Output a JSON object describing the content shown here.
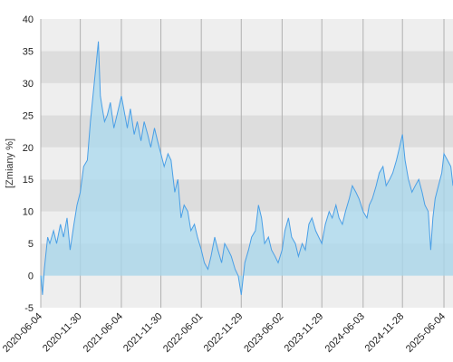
{
  "chart_data": {
    "type": "area",
    "title": "",
    "xlabel": "",
    "ylabel": "[Zmiany %]",
    "ylim": [
      -5,
      40
    ],
    "yticks": [
      -5,
      0,
      5,
      10,
      15,
      20,
      25,
      30,
      35,
      40
    ],
    "xlim": [
      "2020-06-04",
      "2025-07-15"
    ],
    "xticks": [
      "2020-06-04",
      "2020-11-30",
      "2021-06-04",
      "2021-11-30",
      "2022-06-01",
      "2022-11-29",
      "2023-06-02",
      "2023-11-29",
      "2024-06-03",
      "2024-11-28",
      "2025-06-04"
    ],
    "grid": true,
    "legend": "none",
    "colors": {
      "line": "#4a9fe6",
      "fill": "#a8d8ee",
      "band_dark": "#dddddd",
      "band_light": "#eeeeee",
      "grid": "#b0b0b0"
    },
    "series": [
      {
        "x": [
          "2020-06-04",
          "2020-06-12",
          "2020-06-20",
          "2020-07-05",
          "2020-07-15",
          "2020-08-01",
          "2020-08-15",
          "2020-09-01",
          "2020-09-15",
          "2020-10-01",
          "2020-10-15",
          "2020-11-01",
          "2020-11-15",
          "2020-11-30",
          "2020-12-15",
          "2021-01-01",
          "2021-01-15",
          "2021-02-01",
          "2021-02-10",
          "2021-02-20",
          "2021-03-01",
          "2021-03-10",
          "2021-03-20",
          "2021-04-01",
          "2021-04-15",
          "2021-05-01",
          "2021-05-15",
          "2021-06-04",
          "2021-06-20",
          "2021-07-01",
          "2021-07-15",
          "2021-08-01",
          "2021-08-15",
          "2021-09-01",
          "2021-09-15",
          "2021-10-01",
          "2021-10-15",
          "2021-11-01",
          "2021-11-15",
          "2021-11-30",
          "2021-12-15",
          "2022-01-01",
          "2022-01-15",
          "2022-02-01",
          "2022-02-15",
          "2022-03-01",
          "2022-03-15",
          "2022-04-01",
          "2022-04-15",
          "2022-05-01",
          "2022-05-15",
          "2022-06-01",
          "2022-06-15",
          "2022-07-01",
          "2022-07-15",
          "2022-08-01",
          "2022-08-15",
          "2022-09-01",
          "2022-09-15",
          "2022-10-01",
          "2022-10-15",
          "2022-11-01",
          "2022-11-15",
          "2022-11-29",
          "2022-12-15",
          "2023-01-01",
          "2023-01-15",
          "2023-02-01",
          "2023-02-15",
          "2023-03-01",
          "2023-03-15",
          "2023-04-01",
          "2023-04-15",
          "2023-05-01",
          "2023-05-15",
          "2023-06-02",
          "2023-06-15",
          "2023-07-01",
          "2023-07-15",
          "2023-08-01",
          "2023-08-15",
          "2023-09-01",
          "2023-09-15",
          "2023-10-01",
          "2023-10-15",
          "2023-11-01",
          "2023-11-15",
          "2023-11-29",
          "2023-12-15",
          "2024-01-01",
          "2024-01-15",
          "2024-02-01",
          "2024-02-15",
          "2024-03-01",
          "2024-03-15",
          "2024-04-01",
          "2024-04-15",
          "2024-05-01",
          "2024-05-15",
          "2024-06-03",
          "2024-06-20",
          "2024-07-01",
          "2024-07-15",
          "2024-08-01",
          "2024-08-15",
          "2024-09-01",
          "2024-09-15",
          "2024-10-01",
          "2024-10-15",
          "2024-11-01",
          "2024-11-15",
          "2024-11-28",
          "2024-12-10",
          "2024-12-25",
          "2025-01-10",
          "2025-01-25",
          "2025-02-10",
          "2025-02-25",
          "2025-03-10",
          "2025-03-25",
          "2025-04-05",
          "2025-04-15",
          "2025-04-25",
          "2025-05-10",
          "2025-05-25",
          "2025-06-04",
          "2025-06-20",
          "2025-07-05",
          "2025-07-15"
        ],
        "y": [
          0,
          -3,
          1,
          6,
          5,
          7,
          5,
          8,
          6,
          9,
          4,
          8,
          11,
          13,
          17,
          18,
          24,
          30,
          33,
          36.5,
          28,
          26,
          24,
          25,
          27,
          23,
          25,
          28,
          25,
          23,
          26,
          22,
          24,
          21,
          24,
          22,
          20,
          23,
          21,
          19,
          17,
          19,
          18,
          13,
          15,
          9,
          11,
          10,
          7,
          8,
          6,
          4,
          2,
          1,
          3,
          6,
          4,
          2,
          5,
          4,
          3,
          1,
          0,
          -3,
          2,
          4,
          6,
          7,
          11,
          9,
          5,
          6,
          4,
          3,
          2,
          4,
          7,
          9,
          6,
          5,
          3,
          5,
          4,
          8,
          9,
          7,
          6,
          5,
          8,
          10,
          9,
          11,
          9,
          8,
          10,
          12,
          14,
          13,
          12,
          10,
          9,
          11,
          12,
          14,
          16,
          17,
          14,
          15,
          16,
          18,
          20,
          22,
          18,
          15,
          13,
          14,
          15,
          13,
          11,
          10,
          4,
          9,
          12,
          14,
          16,
          19,
          18,
          17,
          14
        ]
      }
    ]
  }
}
